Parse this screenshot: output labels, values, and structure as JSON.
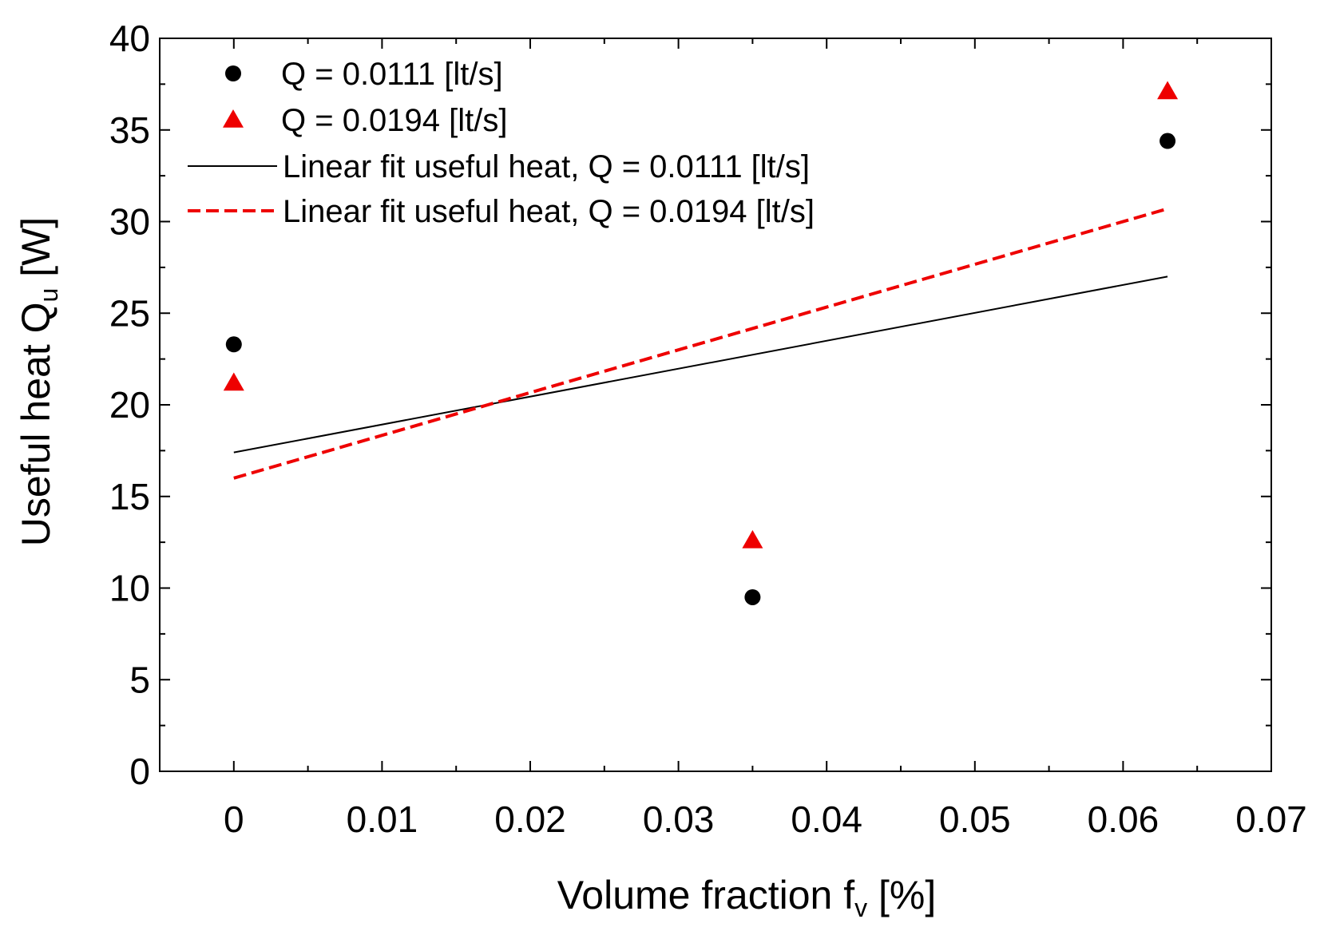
{
  "chart_data": {
    "type": "scatter",
    "xlabel": "Volume fraction f",
    "xlabel_sub": "v",
    "xlabel_suffix": " [%]",
    "ylabel": "Useful heat Q",
    "ylabel_sub": "u",
    "ylabel_suffix": " [W]",
    "xlim": [
      -0.005,
      0.07
    ],
    "ylim": [
      0,
      40
    ],
    "xticks": [
      0,
      0.01,
      0.02,
      0.03,
      0.04,
      0.05,
      0.06,
      0.07
    ],
    "xtick_labels": [
      "0",
      "0.01",
      "0.02",
      "0.03",
      "0.04",
      "0.05",
      "0.06",
      "0.07"
    ],
    "yticks": [
      0,
      5,
      10,
      15,
      20,
      25,
      30,
      35,
      40
    ],
    "ytick_labels": [
      "0",
      "5",
      "10",
      "15",
      "20",
      "25",
      "30",
      "35",
      "40"
    ],
    "grid": false,
    "legend_position": "top-left",
    "series": [
      {
        "name": "Q = 0.0111 [lt/s]",
        "kind": "points",
        "marker": "circle",
        "color": "#000000",
        "x": [
          0,
          0.035,
          0.063
        ],
        "y": [
          23.3,
          9.5,
          34.4
        ]
      },
      {
        "name": "Q = 0.0194 [lt/s]",
        "kind": "points",
        "marker": "triangle",
        "color": "#ee0000",
        "x": [
          0,
          0.035,
          0.063
        ],
        "y": [
          21.2,
          12.6,
          37.1
        ]
      },
      {
        "name": "Linear fit useful heat, Q = 0.0111 [lt/s]",
        "kind": "line",
        "style": "solid",
        "color": "#000000",
        "x": [
          0,
          0.063
        ],
        "y": [
          17.4,
          27.0
        ]
      },
      {
        "name": "Linear fit useful heat, Q = 0.0194 [lt/s]",
        "kind": "line",
        "style": "dashed",
        "color": "#ee0000",
        "x": [
          0,
          0.063
        ],
        "y": [
          16.0,
          30.7
        ]
      }
    ]
  }
}
